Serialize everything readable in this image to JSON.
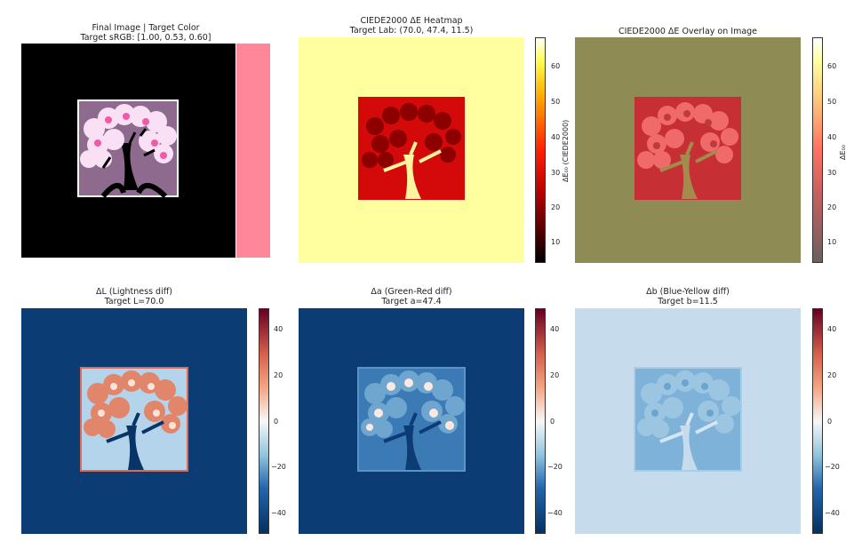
{
  "panels": [
    {
      "id": "final",
      "title": "Final Image | Target Color",
      "subtitle": "Target sRGB: [1.00, 0.53, 0.60]"
    },
    {
      "id": "heatmap",
      "title": "CIEDE2000 ΔE Heatmap",
      "subtitle": "Target Lab: (70.0, 47.4, 11.5)"
    },
    {
      "id": "overlay",
      "title": "CIEDE2000 ΔE Overlay on Image",
      "subtitle": ""
    },
    {
      "id": "dL",
      "title": "ΔL (Lightness diff)",
      "subtitle": "Target L=70.0"
    },
    {
      "id": "da",
      "title": "Δa (Green-Red diff)",
      "subtitle": "Target a=47.4"
    },
    {
      "id": "db",
      "title": "Δb (Blue-Yellow diff)",
      "subtitle": "Target b=11.5"
    }
  ],
  "colors": {
    "target_swatch": "#ff8799",
    "heat_background": "#ffffa0",
    "heat_tree": "#d40a0a",
    "overlay_background": "#8e8b55",
    "overlay_tree": "#c62f33",
    "diff_background": "#0b3c73",
    "diff_db_background": "#c6dcec"
  },
  "colorbars": {
    "deltaE": {
      "ticks": [
        "60",
        "50",
        "40",
        "30",
        "20",
        "10"
      ],
      "label": "ΔE₀₀ (CIEDE2000)"
    },
    "overlay": {
      "ticks": [
        "60",
        "50",
        "40",
        "30",
        "20",
        "10"
      ],
      "label": "ΔE₀₀"
    },
    "diff": {
      "ticks": [
        "40",
        "20",
        "0",
        "−20",
        "−40"
      ]
    }
  },
  "chart_data": [
    {
      "type": "heatmap",
      "title": "Final Image | Target Color",
      "subtitle": "Target sRGB: [1.00, 0.53, 0.60]",
      "target_srgb": [
        1.0,
        0.53,
        0.6
      ]
    },
    {
      "type": "heatmap",
      "title": "CIEDE2000 ΔE Heatmap",
      "subtitle": "Target Lab: (70.0, 47.4, 11.5)",
      "target_lab": [
        70.0,
        47.4,
        11.5
      ],
      "colorbar_label": "ΔE₀₀ (CIEDE2000)",
      "colorbar_range": [
        4,
        68
      ],
      "colorbar_ticks": [
        10,
        20,
        30,
        40,
        50,
        60
      ]
    },
    {
      "type": "heatmap",
      "title": "CIEDE2000 ΔE Overlay on Image",
      "colorbar_label": "ΔE₀₀",
      "colorbar_range": [
        4,
        68
      ],
      "colorbar_ticks": [
        10,
        20,
        30,
        40,
        50,
        60
      ]
    },
    {
      "type": "heatmap",
      "title": "ΔL (Lightness diff)",
      "subtitle": "Target L=70.0",
      "colorbar_range": [
        -50,
        50
      ],
      "colorbar_ticks": [
        -40,
        -20,
        0,
        20,
        40
      ]
    },
    {
      "type": "heatmap",
      "title": "Δa (Green-Red diff)",
      "subtitle": "Target a=47.4",
      "colorbar_range": [
        -50,
        50
      ],
      "colorbar_ticks": [
        -40,
        -20,
        0,
        20,
        40
      ]
    },
    {
      "type": "heatmap",
      "title": "Δb (Blue-Yellow diff)",
      "subtitle": "Target b=11.5",
      "colorbar_range": [
        -50,
        50
      ],
      "colorbar_ticks": [
        -40,
        -20,
        0,
        20,
        40
      ]
    }
  ]
}
